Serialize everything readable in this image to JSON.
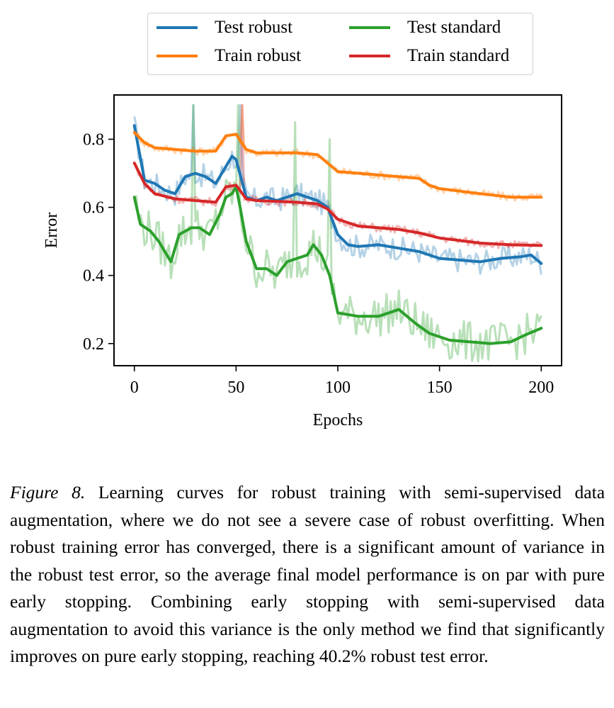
{
  "chart_data": {
    "type": "line",
    "xlabel": "Epochs",
    "ylabel": "Error",
    "xlim": [
      -10,
      210
    ],
    "ylim": [
      0.135,
      0.93
    ],
    "xticks": [
      0,
      50,
      100,
      150,
      200
    ],
    "yticks": [
      0.2,
      0.4,
      0.6,
      0.8
    ],
    "ytick_labels": [
      "0.2",
      "0.4",
      "0.6",
      "0.8"
    ],
    "xtick_labels": [
      "0",
      "50",
      "100",
      "150",
      "200"
    ],
    "legend_position": "top (outside plot)",
    "series": [
      {
        "name": "Test robust",
        "color": "#1f77b4",
        "points": [
          [
            0,
            0.84
          ],
          [
            5,
            0.68
          ],
          [
            10,
            0.67
          ],
          [
            15,
            0.65
          ],
          [
            20,
            0.64
          ],
          [
            25,
            0.69
          ],
          [
            30,
            0.7
          ],
          [
            35,
            0.69
          ],
          [
            40,
            0.67
          ],
          [
            45,
            0.72
          ],
          [
            48,
            0.75
          ],
          [
            50,
            0.74
          ],
          [
            55,
            0.63
          ],
          [
            60,
            0.62
          ],
          [
            65,
            0.63
          ],
          [
            70,
            0.62
          ],
          [
            75,
            0.63
          ],
          [
            80,
            0.64
          ],
          [
            85,
            0.63
          ],
          [
            90,
            0.62
          ],
          [
            95,
            0.6
          ],
          [
            100,
            0.52
          ],
          [
            105,
            0.49
          ],
          [
            110,
            0.485
          ],
          [
            120,
            0.49
          ],
          [
            130,
            0.48
          ],
          [
            140,
            0.47
          ],
          [
            150,
            0.45
          ],
          [
            160,
            0.445
          ],
          [
            170,
            0.44
          ],
          [
            180,
            0.45
          ],
          [
            190,
            0.455
          ],
          [
            195,
            0.46
          ],
          [
            200,
            0.435
          ]
        ]
      },
      {
        "name": "Train robust",
        "color": "#ff7f0e",
        "points": [
          [
            0,
            0.82
          ],
          [
            5,
            0.79
          ],
          [
            10,
            0.775
          ],
          [
            20,
            0.77
          ],
          [
            30,
            0.765
          ],
          [
            40,
            0.765
          ],
          [
            45,
            0.81
          ],
          [
            50,
            0.815
          ],
          [
            55,
            0.77
          ],
          [
            60,
            0.76
          ],
          [
            80,
            0.76
          ],
          [
            90,
            0.755
          ],
          [
            95,
            0.73
          ],
          [
            100,
            0.705
          ],
          [
            120,
            0.695
          ],
          [
            140,
            0.685
          ],
          [
            145,
            0.665
          ],
          [
            150,
            0.655
          ],
          [
            170,
            0.64
          ],
          [
            185,
            0.63
          ],
          [
            200,
            0.63
          ]
        ]
      },
      {
        "name": "Test standard",
        "color": "#2ca02c",
        "points": [
          [
            0,
            0.63
          ],
          [
            3,
            0.55
          ],
          [
            8,
            0.53
          ],
          [
            12,
            0.5
          ],
          [
            18,
            0.44
          ],
          [
            22,
            0.52
          ],
          [
            28,
            0.54
          ],
          [
            32,
            0.54
          ],
          [
            37,
            0.52
          ],
          [
            42,
            0.58
          ],
          [
            45,
            0.63
          ],
          [
            48,
            0.64
          ],
          [
            50,
            0.66
          ],
          [
            52,
            0.6
          ],
          [
            55,
            0.5
          ],
          [
            60,
            0.42
          ],
          [
            65,
            0.42
          ],
          [
            70,
            0.4
          ],
          [
            75,
            0.44
          ],
          [
            80,
            0.45
          ],
          [
            85,
            0.46
          ],
          [
            88,
            0.49
          ],
          [
            92,
            0.46
          ],
          [
            96,
            0.4
          ],
          [
            100,
            0.29
          ],
          [
            105,
            0.285
          ],
          [
            110,
            0.28
          ],
          [
            120,
            0.28
          ],
          [
            130,
            0.3
          ],
          [
            138,
            0.26
          ],
          [
            145,
            0.23
          ],
          [
            155,
            0.21
          ],
          [
            165,
            0.205
          ],
          [
            175,
            0.2
          ],
          [
            185,
            0.205
          ],
          [
            192,
            0.225
          ],
          [
            200,
            0.245
          ]
        ]
      },
      {
        "name": "Train standard",
        "color": "#d62728",
        "points": [
          [
            0,
            0.73
          ],
          [
            5,
            0.67
          ],
          [
            10,
            0.64
          ],
          [
            20,
            0.625
          ],
          [
            30,
            0.62
          ],
          [
            40,
            0.615
          ],
          [
            45,
            0.66
          ],
          [
            50,
            0.665
          ],
          [
            55,
            0.625
          ],
          [
            60,
            0.62
          ],
          [
            80,
            0.615
          ],
          [
            90,
            0.61
          ],
          [
            95,
            0.595
          ],
          [
            100,
            0.565
          ],
          [
            110,
            0.545
          ],
          [
            130,
            0.535
          ],
          [
            140,
            0.525
          ],
          [
            150,
            0.51
          ],
          [
            170,
            0.495
          ],
          [
            185,
            0.49
          ],
          [
            200,
            0.488
          ]
        ]
      }
    ]
  },
  "caption": {
    "label": "Figure 8.",
    "text": "Learning curves for robust training with semi-supervised data augmentation, where we do not see a severe case of robust overfitting. When robust training error has converged, there is a significant amount of variance in the robust test error, so the average final model performance is on par with pure early stopping. Combining early stopping with semi-supervised data augmentation to avoid this variance is the only method we find that significantly improves on pure early stopping, reaching 40.2% robust test error."
  }
}
